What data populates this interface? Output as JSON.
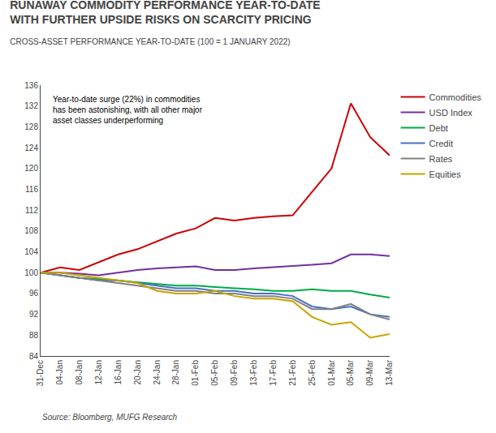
{
  "chart_data": {
    "type": "line",
    "title": "RUNAWAY COMMODITY PERFORMANCE YEAR-TO-DATE\nWITH FURTHER UPSIDE RISKS ON SCARCITY PRICING",
    "subtitle": "CROSS-ASSET PERFORMANCE YEAR-TO-DATE (100 = 1 JANUARY 2022)",
    "annotation": "Year-to-date surge (22%) in commodities\nhas been astonishing, with all other major\nasset classes underperforming",
    "source": "Source: Bloomberg, MUFG Research",
    "categories": [
      "31-Dec",
      "04-Jan",
      "08-Jan",
      "12-Jan",
      "16-Jan",
      "20-Jan",
      "24-Jan",
      "28-Jan",
      "01-Feb",
      "05-Feb",
      "09-Feb",
      "13-Feb",
      "17-Feb",
      "21-Feb",
      "25-Feb",
      "01-Mar",
      "05-Mar",
      "09-Mar",
      "13-Mar"
    ],
    "series": [
      {
        "name": "Commodities",
        "color": "#CC0000",
        "values": [
          100,
          101.0,
          100.5,
          102.0,
          103.5,
          104.5,
          106.0,
          107.5,
          108.5,
          110.5,
          110.0,
          110.5,
          110.8,
          111.0,
          115.5,
          120.0,
          132.5,
          126.0,
          122.5
        ]
      },
      {
        "name": "USD Index",
        "color": "#7030A0",
        "values": [
          100,
          100.0,
          99.8,
          99.5,
          100.0,
          100.5,
          100.8,
          101.0,
          101.2,
          100.5,
          100.5,
          100.8,
          101.0,
          101.2,
          101.5,
          101.8,
          103.5,
          103.5,
          103.2
        ]
      },
      {
        "name": "Debt",
        "color": "#00AA44",
        "values": [
          100,
          99.5,
          99.0,
          98.8,
          98.5,
          98.2,
          97.8,
          97.5,
          97.5,
          97.2,
          97.0,
          96.8,
          96.5,
          96.5,
          96.8,
          96.5,
          96.5,
          95.8,
          95.2
        ]
      },
      {
        "name": "Credit",
        "color": "#4472C4",
        "values": [
          100,
          99.5,
          99.0,
          98.5,
          98.5,
          98.0,
          97.5,
          97.0,
          97.0,
          96.5,
          96.5,
          96.0,
          96.0,
          95.5,
          93.5,
          93.0,
          93.5,
          92.0,
          91.5
        ]
      },
      {
        "name": "Rates",
        "color": "#808080",
        "values": [
          100,
          99.5,
          99.0,
          98.5,
          98.0,
          97.5,
          97.0,
          96.5,
          96.5,
          96.0,
          96.0,
          95.5,
          95.5,
          95.0,
          93.0,
          93.0,
          94.0,
          92.0,
          91.0
        ]
      },
      {
        "name": "Equities",
        "color": "#C8A400",
        "values": [
          100,
          100.0,
          99.5,
          99.0,
          98.5,
          98.0,
          96.5,
          96.0,
          96.0,
          96.5,
          95.5,
          95.0,
          95.0,
          94.5,
          91.5,
          90.0,
          90.5,
          87.5,
          88.2
        ]
      }
    ],
    "ylim": [
      84,
      136
    ],
    "yticks": [
      84,
      88,
      92,
      96,
      100,
      104,
      108,
      112,
      116,
      120,
      124,
      128,
      132,
      136
    ],
    "grid": false,
    "legend": "right"
  }
}
